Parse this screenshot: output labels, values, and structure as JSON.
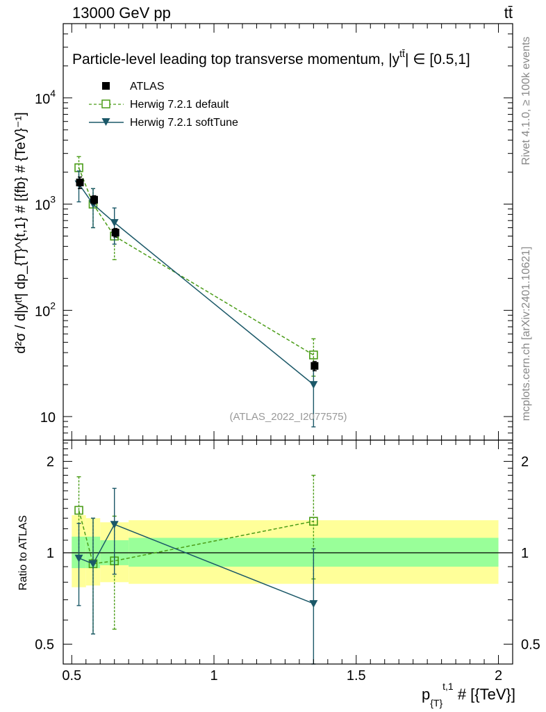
{
  "header": {
    "energy_label": "13000 GeV pp",
    "process_label": "tt̄"
  },
  "side_labels": {
    "rivet": "Rivet 4.1.0, ≥ 100k events",
    "mcplots": "mcplots.cern.ch [arXiv:2401.10621]"
  },
  "chart_data": {
    "type": "line",
    "title": "Particle-level leading top transverse momentum, |y",
    "title_sup": "tt̄",
    "title_tail": "| ∈ [0.5,1]",
    "watermark": "(ATLAS_2022_I2077575)",
    "main_panel": {
      "ylabel": "d²σ / d|yᵗᵗ̄| dp_{T}^{t,1} # [{fb} # {TeV}⁻¹]",
      "yscale": "log",
      "ylim": [
        6,
        50000
      ],
      "ytick_labels": [
        {
          "value": 10,
          "base": "10",
          "exp": ""
        },
        {
          "value": 100,
          "base": "10",
          "exp": "2"
        },
        {
          "value": 1000,
          "base": "10",
          "exp": "3"
        },
        {
          "value": 10000,
          "base": "10",
          "exp": "4"
        }
      ]
    },
    "ratio_panel": {
      "ylabel": "Ratio to ATLAS",
      "yscale": "log",
      "ylim": [
        0.43,
        2.35
      ],
      "ytick_labels": [
        "0.5",
        "1",
        "2"
      ],
      "ytick_values": [
        0.5,
        1,
        2
      ]
    },
    "x_axis": {
      "label_main": "p",
      "label_sub": "{T}",
      "label_sup": "t,1",
      "label_tail": " # [{TeV}]",
      "xlim": [
        0.47,
        2.05
      ],
      "tick_labels": [
        "0.5",
        "1",
        "1.5",
        "2"
      ],
      "tick_values": [
        0.5,
        1,
        1.5,
        2
      ]
    },
    "bins": [
      {
        "lo": 0.5,
        "hi": 0.55
      },
      {
        "lo": 0.55,
        "hi": 0.6
      },
      {
        "lo": 0.6,
        "hi": 0.7
      },
      {
        "lo": 0.7,
        "hi": 2.0
      }
    ],
    "series": [
      {
        "name": "ATLAS",
        "color": "#000000",
        "marker": "square-filled",
        "x": [
          0.525,
          0.575,
          0.65,
          1.35
        ],
        "y": [
          1600,
          1100,
          540,
          30
        ],
        "yerr_lo": [
          1400,
          1000,
          490,
          27
        ],
        "yerr_hi": [
          1800,
          1200,
          590,
          33
        ],
        "band_inner": [
          [
            0.89,
            1.13
          ],
          [
            0.89,
            1.13
          ],
          [
            0.91,
            1.1
          ],
          [
            0.9,
            1.12
          ]
        ],
        "band_outer": [
          [
            0.77,
            1.33
          ],
          [
            0.78,
            1.3
          ],
          [
            0.8,
            1.26
          ],
          [
            0.79,
            1.28
          ]
        ]
      },
      {
        "name": "Herwig 7.2.1 default",
        "color": "#4a9c17",
        "marker": "square-open",
        "linestyle": "dashed",
        "x": [
          0.525,
          0.575,
          0.65,
          1.35
        ],
        "y": [
          2200,
          1000,
          500,
          38
        ],
        "yerr_lo": [
          1600,
          600,
          300,
          24
        ],
        "yerr_hi": [
          2800,
          1400,
          700,
          54
        ],
        "ratio": [
          1.38,
          0.92,
          0.94,
          1.27
        ],
        "ratio_lo": [
          0.98,
          0.54,
          0.56,
          0.82
        ],
        "ratio_hi": [
          1.78,
          1.3,
          1.32,
          1.8
        ]
      },
      {
        "name": "Herwig 7.2.1 softTune",
        "color": "#1b5868",
        "marker": "triangle-down-filled",
        "linestyle": "solid",
        "x": [
          0.525,
          0.575,
          0.65,
          1.35
        ],
        "y": [
          1550,
          1000,
          670,
          20
        ],
        "yerr_lo": [
          1050,
          600,
          420,
          8
        ],
        "yerr_hi": [
          2050,
          1400,
          920,
          32
        ],
        "ratio": [
          0.96,
          0.92,
          1.24,
          0.68
        ],
        "ratio_lo": [
          0.67,
          0.54,
          0.85,
          0.43
        ],
        "ratio_hi": [
          1.25,
          1.3,
          1.63,
          1.03
        ]
      }
    ]
  }
}
